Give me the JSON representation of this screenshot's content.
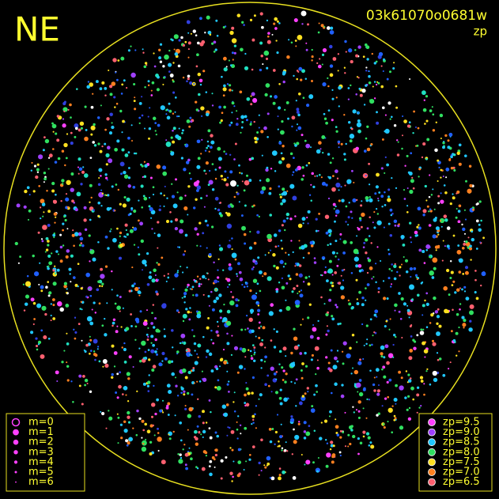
{
  "header": {
    "direction": "NE",
    "frame_id": "03k61070o0681w",
    "mode": "zp"
  },
  "legend_m": {
    "items": [
      "m=0",
      "m=1",
      "m=2",
      "m=3",
      "m=4",
      "m=5",
      "m=6"
    ]
  },
  "legend_zp": {
    "items": [
      {
        "label": "zp=9.5",
        "color": "#ff40ff"
      },
      {
        "label": "zp=9.0",
        "color": "#a040ff"
      },
      {
        "label": "zp=8.5",
        "color": "#20c8ff"
      },
      {
        "label": "zp=8.0",
        "color": "#30e060"
      },
      {
        "label": "zp=7.5",
        "color": "#ffe020"
      },
      {
        "label": "zp=7.0",
        "color": "#ff8020"
      },
      {
        "label": "zp=6.5",
        "color": "#ff6070"
      }
    ]
  }
}
